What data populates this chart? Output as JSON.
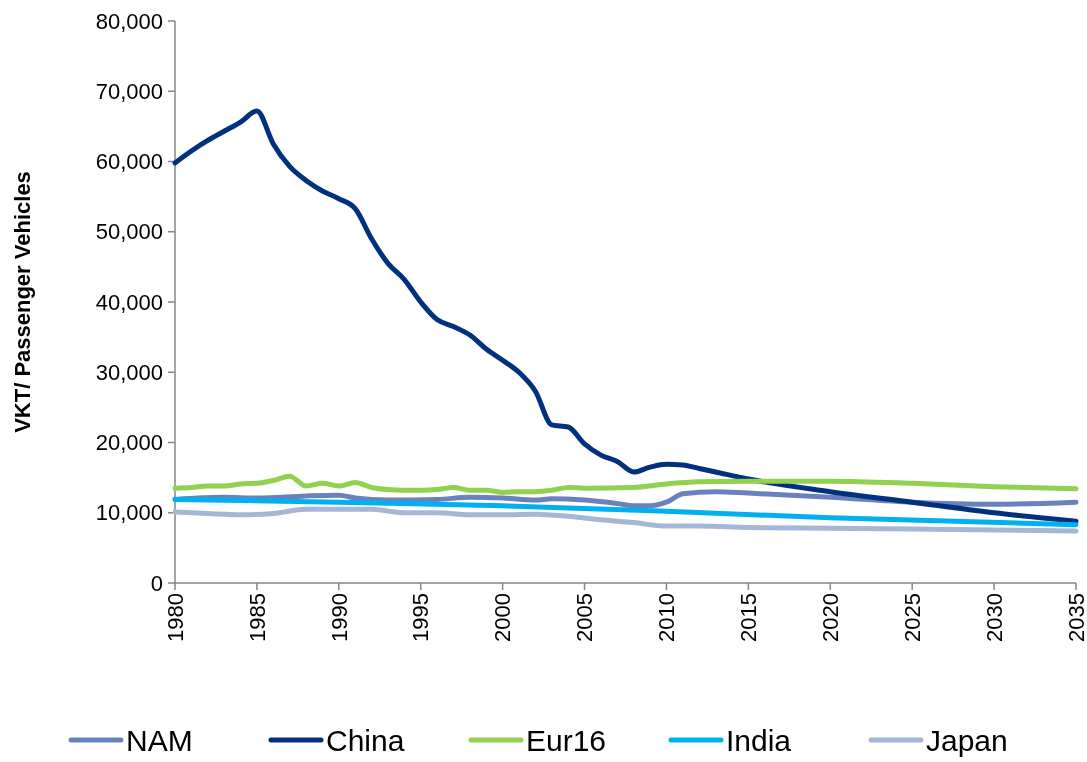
{
  "chart_data": {
    "type": "line",
    "ylabel": "VKT/ Passenger Vehicles",
    "xlim": [
      1980,
      2035
    ],
    "xticks": [
      1980,
      1985,
      1990,
      1995,
      2000,
      2005,
      2010,
      2015,
      2020,
      2025,
      2030,
      2035
    ],
    "ylim": [
      0,
      80000
    ],
    "yticks": [
      {
        "value": 0,
        "label": "0"
      },
      {
        "value": 10000,
        "label": "10,000"
      },
      {
        "value": 20000,
        "label": "20,000"
      },
      {
        "value": 30000,
        "label": "30,000"
      },
      {
        "value": 40000,
        "label": "40,000"
      },
      {
        "value": 50000,
        "label": "50,000"
      },
      {
        "value": 60000,
        "label": "60,000"
      },
      {
        "value": 70000,
        "label": "70,000"
      },
      {
        "value": 80000,
        "label": "80,000"
      }
    ],
    "grid": false,
    "legend": "bottom",
    "marker": "none",
    "line_style": "solid",
    "series": [
      {
        "name": "NAM",
        "color": "#6a82bc",
        "x": [
          1980,
          1983,
          1985,
          1988,
          1990,
          1991,
          1993,
          1996,
          1998,
          2000,
          2002,
          2003,
          2005,
          2007,
          2008,
          2009,
          2010,
          2011,
          2013,
          2015,
          2020,
          2025,
          2030,
          2035
        ],
        "values": [
          11900,
          12200,
          12100,
          12400,
          12500,
          12100,
          11800,
          11900,
          12200,
          12100,
          11800,
          12000,
          11800,
          11300,
          11000,
          11000,
          11500,
          12700,
          13000,
          12800,
          12200,
          11500,
          11200,
          11500
        ]
      },
      {
        "name": "China",
        "color": "#00307e",
        "x": [
          1980,
          1981,
          1982,
          1983,
          1984,
          1985,
          1986,
          1987,
          1988,
          1989,
          1990,
          1991,
          1992,
          1993,
          1994,
          1995,
          1996,
          1997,
          1998,
          1999,
          2000,
          2001,
          2002,
          2003,
          2004,
          2005,
          2006,
          2007,
          2008,
          2009,
          2010,
          2011,
          2012,
          2013,
          2015,
          2020,
          2025,
          2030,
          2035
        ],
        "values": [
          59800,
          61500,
          63000,
          64300,
          65600,
          67200,
          62500,
          59300,
          57300,
          55800,
          54700,
          53300,
          49000,
          45500,
          43200,
          40000,
          37500,
          36500,
          35300,
          33300,
          31700,
          30000,
          27300,
          22500,
          22200,
          19800,
          18200,
          17300,
          15800,
          16500,
          16900,
          16800,
          16300,
          15800,
          14800,
          13000,
          11500,
          10000,
          8800
        ]
      },
      {
        "name": "Eur16",
        "color": "#92d050",
        "x": [
          1980,
          1981,
          1982,
          1983,
          1984,
          1985,
          1986,
          1987,
          1988,
          1989,
          1990,
          1991,
          1992,
          1993,
          1994,
          1995,
          1996,
          1997,
          1998,
          1999,
          2000,
          2001,
          2002,
          2003,
          2004,
          2005,
          2008,
          2010,
          2012,
          2015,
          2020,
          2025,
          2030,
          2035
        ],
        "values": [
          13500,
          13600,
          13800,
          13800,
          14100,
          14200,
          14600,
          15200,
          13800,
          14200,
          13800,
          14300,
          13600,
          13300,
          13200,
          13200,
          13300,
          13600,
          13200,
          13200,
          12900,
          13000,
          13000,
          13200,
          13600,
          13500,
          13600,
          14100,
          14400,
          14500,
          14500,
          14200,
          13700,
          13400
        ]
      },
      {
        "name": "India",
        "color": "#00b0f0",
        "x": [
          1980,
          1990,
          2000,
          2010,
          2020,
          2035
        ],
        "values": [
          11900,
          11500,
          11000,
          10200,
          9300,
          8300
        ]
      },
      {
        "name": "Japan",
        "color": "#a6b6d6",
        "x": [
          1980,
          1982,
          1984,
          1986,
          1988,
          1992,
          1994,
          1996,
          1998,
          2000,
          2002,
          2004,
          2006,
          2008,
          2010,
          2012,
          2015,
          2020,
          2025,
          2035
        ],
        "values": [
          10100,
          9900,
          9700,
          9900,
          10500,
          10500,
          10000,
          10000,
          9700,
          9700,
          9800,
          9500,
          9000,
          8600,
          8100,
          8100,
          7900,
          7800,
          7700,
          7400
        ]
      }
    ]
  }
}
